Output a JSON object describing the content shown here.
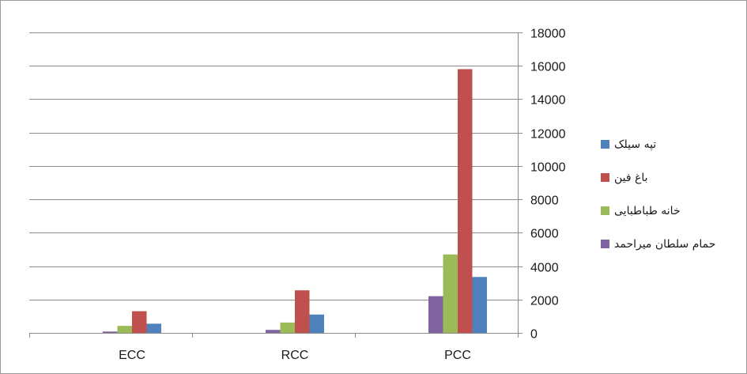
{
  "chart_data": {
    "type": "bar",
    "categories": [
      "ECC",
      "RCC",
      "PCC"
    ],
    "series": [
      {
        "name": "حمام سلطان میراحمد",
        "color": "#8064a2",
        "values": [
          80,
          180,
          2200
        ]
      },
      {
        "name": "خانه طباطبایی",
        "color": "#9bbb59",
        "values": [
          420,
          620,
          4700
        ]
      },
      {
        "name": "باغ فین",
        "color": "#c0504d",
        "values": [
          1300,
          2550,
          15800
        ]
      },
      {
        "name": "تپه سیلک",
        "color": "#4f81bd",
        "values": [
          550,
          1100,
          3350
        ]
      }
    ],
    "legend_order": [
      3,
      2,
      1,
      0
    ],
    "y_ticks": [
      "0",
      "2000",
      "4000",
      "6000",
      "8000",
      "10000",
      "12000",
      "14000",
      "16000",
      "18000"
    ],
    "ylim": [
      0,
      18000
    ],
    "y_axis_side": "right",
    "grid": true,
    "legend_position": "right"
  }
}
